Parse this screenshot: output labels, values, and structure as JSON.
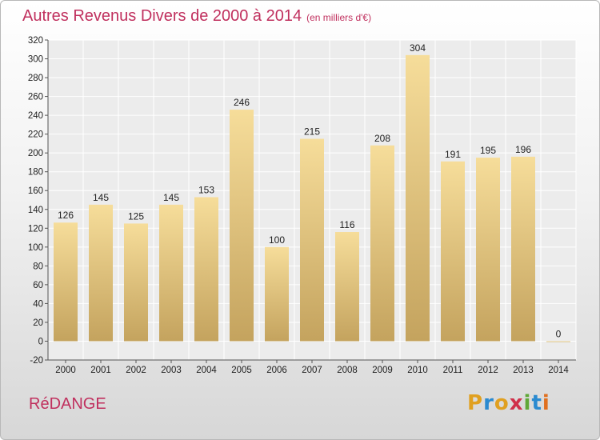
{
  "chart_data": {
    "type": "bar",
    "title": "Autres Revenus Divers de 2000 à 2014",
    "subtitle": "(en milliers d'€)",
    "xlabel": "",
    "ylabel": "",
    "categories": [
      "2000",
      "2001",
      "2002",
      "2003",
      "2004",
      "2005",
      "2006",
      "2007",
      "2008",
      "2009",
      "2010",
      "2011",
      "2012",
      "2013",
      "2014"
    ],
    "values": [
      126,
      145,
      125,
      145,
      153,
      246,
      100,
      215,
      116,
      208,
      304,
      191,
      195,
      196,
      0
    ],
    "ylim": [
      -20,
      320
    ],
    "yticks": [
      -20,
      0,
      20,
      40,
      60,
      80,
      100,
      120,
      140,
      160,
      180,
      200,
      220,
      240,
      260,
      280,
      300,
      320
    ],
    "grid": true,
    "bar_color": "#e8c97e"
  },
  "footer": {
    "commune": "RéDANGE",
    "logo_letters": [
      "P",
      "r",
      "o",
      "x",
      "i",
      "t",
      "i"
    ],
    "logo_colors": [
      "#e0a020",
      "#2a8ad0",
      "#e0a020",
      "#d0304a",
      "#60a838",
      "#2a8ad0",
      "#e07020"
    ]
  }
}
